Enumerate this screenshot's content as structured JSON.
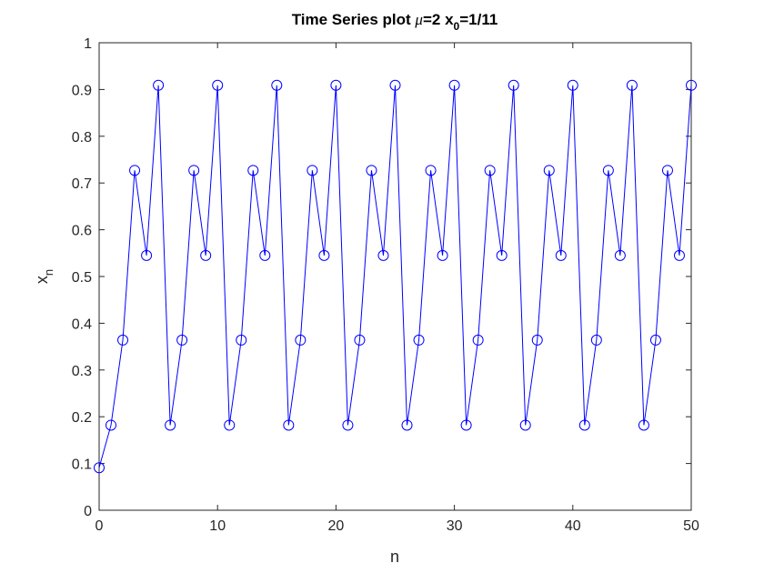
{
  "chart_data": {
    "type": "line",
    "title": {
      "prefix": "Time Series plot ",
      "mu_symbol": "μ",
      "mu_value": "=2 x",
      "x0_subscript": "0",
      "x0_value": "=1/11"
    },
    "xlabel": "n",
    "ylabel": {
      "base": "x",
      "subscript": "n"
    },
    "xlim": [
      0,
      50
    ],
    "ylim": [
      0,
      1
    ],
    "xticks": [
      0,
      10,
      20,
      30,
      40,
      50
    ],
    "xtick_labels": [
      "0",
      "10",
      "20",
      "30",
      "40",
      "50"
    ],
    "yticks": [
      0,
      0.1,
      0.2,
      0.3,
      0.4,
      0.5,
      0.6,
      0.7,
      0.8,
      0.9,
      1
    ],
    "ytick_labels": [
      "0",
      "0.1",
      "0.2",
      "0.3",
      "0.4",
      "0.5",
      "0.6",
      "0.7",
      "0.8",
      "0.9",
      "1"
    ],
    "grid": false,
    "line_color": "#0000ff",
    "marker": "circle",
    "x": [
      0,
      1,
      2,
      3,
      4,
      5,
      6,
      7,
      8,
      9,
      10,
      11,
      12,
      13,
      14,
      15,
      16,
      17,
      18,
      19,
      20,
      21,
      22,
      23,
      24,
      25,
      26,
      27,
      28,
      29,
      30,
      31,
      32,
      33,
      34,
      35,
      36,
      37,
      38,
      39,
      40,
      41,
      42,
      43,
      44,
      45,
      46,
      47,
      48,
      49,
      50
    ],
    "y": [
      0.091,
      0.182,
      0.364,
      0.727,
      0.545,
      0.909,
      0.182,
      0.364,
      0.727,
      0.545,
      0.909,
      0.182,
      0.364,
      0.727,
      0.545,
      0.909,
      0.182,
      0.364,
      0.727,
      0.545,
      0.909,
      0.182,
      0.364,
      0.727,
      0.545,
      0.909,
      0.182,
      0.364,
      0.727,
      0.545,
      0.909,
      0.182,
      0.364,
      0.727,
      0.545,
      0.909,
      0.182,
      0.364,
      0.727,
      0.545,
      0.909,
      0.182,
      0.364,
      0.727,
      0.545,
      0.909,
      0.182,
      0.364,
      0.727,
      0.545,
      0.909
    ]
  }
}
